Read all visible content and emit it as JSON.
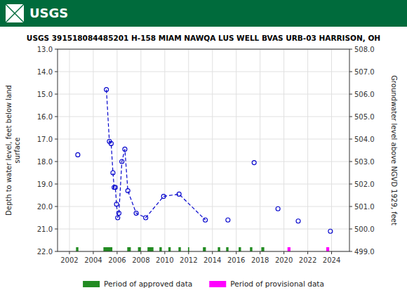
{
  "chart_data": {
    "type": "scatter",
    "title": "USGS 391518084485201 H-158 MIAM NAWQA LUS WELL BVAS URB-03 HARRISON, OH",
    "ylabel": "Depth to water level, feet below land\nsurface",
    "y2label": "Groundwater level above NGVD 1929, feet",
    "annotations": [
      {
        "text": "USGS",
        "color": "#006b3c"
      }
    ],
    "xlim": [
      2001.0,
      2025.5
    ],
    "xticks": [
      2002,
      2004,
      2006,
      2008,
      2010,
      2012,
      2014,
      2016,
      2018,
      2020,
      2022,
      2024
    ],
    "ylim": [
      22.0,
      13.0
    ],
    "yticks": [
      {
        "value": 13.0,
        "label": "13.0"
      },
      {
        "value": 14.0,
        "label": "14.0"
      },
      {
        "value": 15.0,
        "label": "15.0"
      },
      {
        "value": 16.0,
        "label": "16.0"
      },
      {
        "value": 17.0,
        "label": "17.0"
      },
      {
        "value": 18.0,
        "label": "18.0"
      },
      {
        "value": 19.0,
        "label": "19.0"
      },
      {
        "value": 20.0,
        "label": "20.0"
      },
      {
        "value": 21.0,
        "label": "21.0"
      },
      {
        "value": 22.0,
        "label": "22.0"
      }
    ],
    "y2lim": [
      499.0,
      508.0
    ],
    "y2ticks": [
      {
        "value": 508.0,
        "label": "508.0"
      },
      {
        "value": 507.0,
        "label": "507.0"
      },
      {
        "value": 506.0,
        "label": "506.0"
      },
      {
        "value": 505.0,
        "label": "505.0"
      },
      {
        "value": 504.0,
        "label": "504.0"
      },
      {
        "value": 503.0,
        "label": "503.0"
      },
      {
        "value": 502.0,
        "label": "502.0"
      },
      {
        "value": 501.0,
        "label": "501.0"
      },
      {
        "value": 500.0,
        "label": "500.0"
      },
      {
        "value": 499.0,
        "label": "499.0"
      }
    ],
    "grid": true,
    "legend": "bottom",
    "series": [
      {
        "type": "scatter",
        "marker": "open-circle",
        "color": "#0000cc",
        "x": [
          2002.7,
          2005.1,
          2005.35,
          2005.5,
          2005.65,
          2005.75,
          2005.85,
          2005.95,
          2006.05,
          2006.15,
          2006.4,
          2006.65,
          2006.9,
          2007.6,
          2008.4,
          2009.9,
          2011.2,
          2013.4,
          2015.3,
          2017.5,
          2019.5,
          2021.2,
          2023.9
        ],
        "values": [
          17.7,
          14.8,
          17.1,
          17.2,
          18.5,
          19.15,
          19.15,
          19.9,
          20.5,
          20.3,
          18.0,
          17.45,
          19.3,
          20.3,
          20.5,
          19.55,
          19.45,
          20.6,
          20.6,
          18.05,
          20.1,
          20.65,
          21.1
        ]
      },
      {
        "type": "line",
        "line_style": "dashed",
        "color": "#0000cc",
        "x": [
          2005.1,
          2005.35,
          2005.5,
          2005.65,
          2005.75,
          2005.85,
          2005.95,
          2006.05,
          2006.15,
          2006.4,
          2006.65,
          2006.9,
          2007.6,
          2008.4,
          2009.9,
          2011.2,
          2013.4
        ],
        "values": [
          14.8,
          17.1,
          17.2,
          18.5,
          19.15,
          19.15,
          19.9,
          20.5,
          20.3,
          18.0,
          17.45,
          19.3,
          20.3,
          20.5,
          19.55,
          19.45,
          20.6
        ]
      },
      {
        "type": "period",
        "name": "Period of approved data",
        "color": "#228B22",
        "periods": [
          [
            2002.55,
            2002.75
          ],
          [
            2004.85,
            2005.6
          ],
          [
            2006.85,
            2007.15
          ],
          [
            2007.75,
            2008.0
          ],
          [
            2008.55,
            2009.05
          ],
          [
            2009.55,
            2009.75
          ],
          [
            2010.3,
            2010.5
          ],
          [
            2011.15,
            2011.35
          ],
          [
            2011.95,
            2012.05
          ],
          [
            2013.2,
            2013.45
          ],
          [
            2014.45,
            2014.65
          ],
          [
            2015.15,
            2015.35
          ],
          [
            2016.2,
            2016.4
          ],
          [
            2017.15,
            2017.35
          ],
          [
            2018.1,
            2018.35
          ]
        ]
      },
      {
        "type": "period",
        "name": "Period of provisional data",
        "color": "#ff00ff",
        "periods": [
          [
            2020.3,
            2020.55
          ],
          [
            2023.55,
            2023.8
          ]
        ]
      }
    ]
  }
}
